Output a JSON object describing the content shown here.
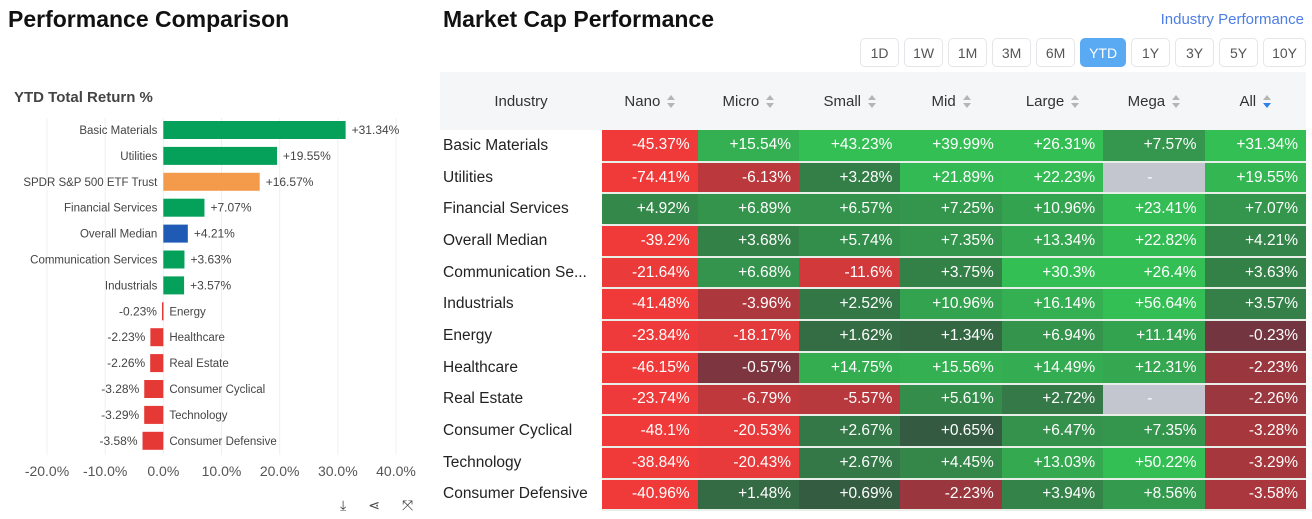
{
  "left": {
    "title": "Performance Comparison",
    "icons": [
      "download-icon",
      "share-icon",
      "expand-icon"
    ]
  },
  "chart_data": {
    "type": "bar",
    "orientation": "horizontal",
    "title": "YTD Total Return %",
    "categories": [
      "Basic Materials",
      "Utilities",
      "SPDR S&P 500 ETF Trust",
      "Financial Services",
      "Overall Median",
      "Communication Services",
      "Industrials",
      "Energy",
      "Healthcare",
      "Real Estate",
      "Consumer Cyclical",
      "Technology",
      "Consumer Defensive"
    ],
    "values": [
      31.34,
      19.55,
      16.57,
      7.07,
      4.21,
      3.63,
      3.57,
      -0.23,
      -2.23,
      -2.26,
      -3.28,
      -3.29,
      -3.58
    ],
    "labels": [
      "+31.34%",
      "+19.55%",
      "+16.57%",
      "+7.07%",
      "+4.21%",
      "+3.63%",
      "+3.57%",
      "-0.23%",
      "-2.23%",
      "-2.26%",
      "-3.28%",
      "-3.29%",
      "-3.58%"
    ],
    "colors": [
      "#05a05a",
      "#05a05a",
      "#f39b4a",
      "#05a05a",
      "#1f5bb5",
      "#05a05a",
      "#05a05a",
      "#e53935",
      "#e53935",
      "#e53935",
      "#e53935",
      "#e53935",
      "#e53935"
    ],
    "xticks": [
      "-20.0%",
      "-10.0%",
      "0.0%",
      "10.0%",
      "20.0%",
      "30.0%",
      "40.0%"
    ],
    "xlim": [
      -20,
      40
    ]
  },
  "right": {
    "title": "Market Cap Performance",
    "link": "Industry Performance",
    "periods": [
      "1D",
      "1W",
      "1M",
      "3M",
      "6M",
      "YTD",
      "1Y",
      "3Y",
      "5Y",
      "10Y"
    ],
    "active_period": "YTD",
    "columns": [
      "Industry",
      "Nano",
      "Micro",
      "Small",
      "Mid",
      "Large",
      "Mega",
      "All"
    ],
    "sorted_column": "All",
    "rows": [
      [
        "Basic Materials",
        "-45.37%",
        "+15.54%",
        "+43.23%",
        "+39.99%",
        "+26.31%",
        "+7.57%",
        "+31.34%"
      ],
      [
        "Utilities",
        "-74.41%",
        "-6.13%",
        "+3.28%",
        "+21.89%",
        "+22.23%",
        "-",
        "+19.55%"
      ],
      [
        "Financial Services",
        "+4.92%",
        "+6.89%",
        "+6.57%",
        "+7.25%",
        "+10.96%",
        "+23.41%",
        "+7.07%"
      ],
      [
        "Overall Median",
        "-39.2%",
        "+3.68%",
        "+5.74%",
        "+7.35%",
        "+13.34%",
        "+22.82%",
        "+4.21%"
      ],
      [
        "Communication Se...",
        "-21.64%",
        "+6.68%",
        "-11.6%",
        "+3.75%",
        "+30.3%",
        "+26.4%",
        "+3.63%"
      ],
      [
        "Industrials",
        "-41.48%",
        "-3.96%",
        "+2.52%",
        "+10.96%",
        "+16.14%",
        "+56.64%",
        "+3.57%"
      ],
      [
        "Energy",
        "-23.84%",
        "-18.17%",
        "+1.62%",
        "+1.34%",
        "+6.94%",
        "+11.14%",
        "-0.23%"
      ],
      [
        "Healthcare",
        "-46.15%",
        "-0.57%",
        "+14.75%",
        "+15.56%",
        "+14.49%",
        "+12.31%",
        "-2.23%"
      ],
      [
        "Real Estate",
        "-23.74%",
        "-6.79%",
        "-5.57%",
        "+5.61%",
        "+2.72%",
        "-",
        "-2.26%"
      ],
      [
        "Consumer Cyclical",
        "-48.1%",
        "-20.53%",
        "+2.67%",
        "+0.65%",
        "+6.47%",
        "+7.35%",
        "-3.28%"
      ],
      [
        "Technology",
        "-38.84%",
        "-20.43%",
        "+2.67%",
        "+4.45%",
        "+13.03%",
        "+50.22%",
        "-3.29%"
      ],
      [
        "Consumer Defensive",
        "-40.96%",
        "+1.48%",
        "+0.69%",
        "-2.23%",
        "+3.94%",
        "+8.56%",
        "-3.58%"
      ]
    ]
  }
}
